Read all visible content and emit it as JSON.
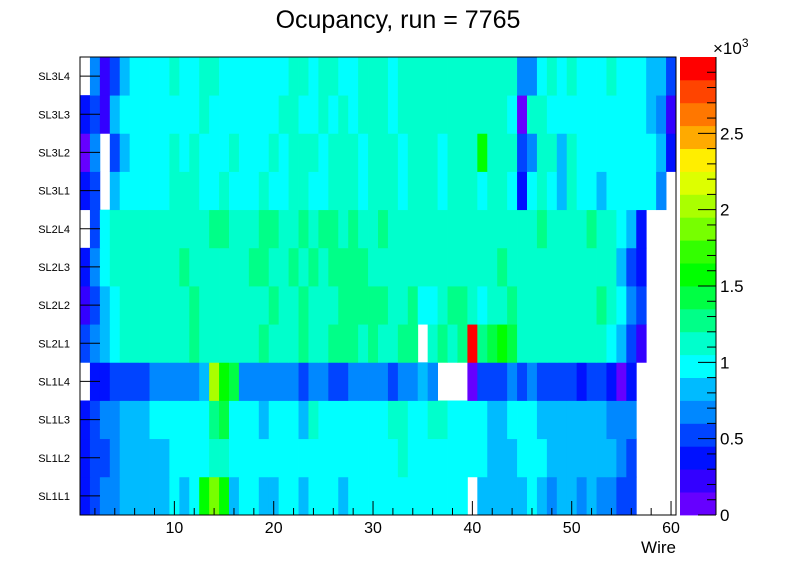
{
  "chart_data": {
    "type": "heatmap",
    "title": "Ocupancy, run = 7765",
    "xlabel": "Wire",
    "ylabel": "",
    "xlim": [
      0.5,
      60.5
    ],
    "x_ticks": [
      "10",
      "20",
      "30",
      "40",
      "50",
      "60"
    ],
    "x_tick_values": [
      10,
      20,
      30,
      40,
      50,
      60
    ],
    "y_categories": [
      "SL1L1",
      "SL1L2",
      "SL1L3",
      "SL1L4",
      "SL2L1",
      "SL2L2",
      "SL2L3",
      "SL2L4",
      "SL3L1",
      "SL3L2",
      "SL3L3",
      "SL3L4"
    ],
    "zlim": [
      0,
      3000
    ],
    "z_multiplier_label": "×10",
    "z_multiplier_exp": "3",
    "z_ticks": [
      "0",
      "0.5",
      "1",
      "1.5",
      "2",
      "2.5"
    ],
    "z_tick_values": [
      0,
      500,
      1000,
      1500,
      2000,
      2500
    ],
    "palette": [
      "#6600ff",
      "#3300ff",
      "#0011ff",
      "#0044ff",
      "#0088ff",
      "#00bbff",
      "#00ffff",
      "#00ffcc",
      "#00ff88",
      "#00ff44",
      "#00ff00",
      "#33ff00",
      "#77ff00",
      "#aaff00",
      "#ddff00",
      "#ffee00",
      "#ffaa00",
      "#ff7700",
      "#ff4400",
      "#ff0000"
    ],
    "z_rows_top_to_bottom": {
      "SL3L4": [
        0,
        675,
        225,
        525,
        825,
        975,
        975,
        975,
        975,
        1125,
        975,
        975,
        1125,
        1125,
        975,
        975,
        975,
        975,
        975,
        975,
        975,
        1125,
        1125,
        975,
        1125,
        1125,
        975,
        975,
        1125,
        1125,
        1125,
        975,
        1125,
        1125,
        1125,
        1125,
        1125,
        1125,
        1125,
        1125,
        1125,
        1125,
        1125,
        1125,
        675,
        675,
        975,
        1125,
        975,
        1125,
        975,
        975,
        975,
        1125,
        975,
        975,
        975,
        825,
        825,
        525
      ],
      "SL3L3": [
        375,
        525,
        225,
        825,
        975,
        975,
        975,
        975,
        975,
        975,
        975,
        975,
        1125,
        975,
        975,
        975,
        975,
        975,
        975,
        975,
        1125,
        1125,
        975,
        975,
        1125,
        975,
        1125,
        975,
        1125,
        1125,
        1125,
        975,
        1125,
        1125,
        1125,
        1125,
        1125,
        1125,
        1125,
        1125,
        1125,
        1125,
        1125,
        975,
        75,
        1125,
        1125,
        975,
        975,
        975,
        975,
        975,
        975,
        975,
        975,
        975,
        975,
        825,
        675,
        225
      ],
      "SL3L2": [
        75,
        675,
        0,
        525,
        825,
        975,
        975,
        975,
        975,
        1125,
        975,
        1125,
        975,
        975,
        975,
        1125,
        975,
        975,
        975,
        1125,
        975,
        1125,
        1125,
        1125,
        975,
        1125,
        1125,
        1125,
        975,
        1125,
        1125,
        1125,
        975,
        1125,
        1125,
        1125,
        975,
        1125,
        1125,
        1125,
        1575,
        1125,
        1125,
        1125,
        525,
        675,
        1125,
        1125,
        825,
        1125,
        975,
        975,
        975,
        975,
        975,
        975,
        975,
        975,
        825,
        375
      ],
      "SL3L1": [
        375,
        525,
        0,
        825,
        975,
        975,
        975,
        975,
        975,
        1125,
        1125,
        1125,
        975,
        975,
        1125,
        975,
        975,
        975,
        1125,
        975,
        975,
        1125,
        1125,
        975,
        975,
        1125,
        1125,
        1125,
        975,
        1125,
        1125,
        1125,
        975,
        1125,
        1125,
        1125,
        975,
        1125,
        1125,
        1125,
        975,
        1125,
        1125,
        975,
        375,
        975,
        1125,
        975,
        825,
        1125,
        975,
        975,
        825,
        975,
        975,
        975,
        975,
        975,
        675,
        0
      ],
      "SL2L4": [
        0,
        525,
        975,
        1125,
        1125,
        1125,
        1125,
        1125,
        1125,
        1125,
        1125,
        1125,
        1125,
        1275,
        1275,
        1125,
        1125,
        1125,
        1275,
        1275,
        1125,
        1125,
        1275,
        1125,
        1275,
        1275,
        1125,
        1275,
        1125,
        1125,
        1275,
        1125,
        1125,
        1125,
        1125,
        1125,
        1125,
        1125,
        1125,
        1125,
        1125,
        1125,
        1125,
        1125,
        1125,
        1125,
        1275,
        1125,
        1125,
        1125,
        1125,
        1275,
        1125,
        1125,
        975,
        825,
        375,
        0,
        0,
        0
      ],
      "SL2L3": [
        375,
        675,
        975,
        1125,
        1125,
        1125,
        1125,
        1125,
        1125,
        1125,
        1275,
        1125,
        1125,
        1125,
        1125,
        1125,
        1125,
        1275,
        1275,
        1125,
        1125,
        1275,
        1125,
        1275,
        1125,
        1275,
        1275,
        1275,
        1275,
        1125,
        1125,
        1125,
        1125,
        1125,
        1125,
        1125,
        1125,
        1125,
        1125,
        1125,
        1125,
        1125,
        1275,
        1125,
        1125,
        1125,
        1125,
        1125,
        1125,
        1125,
        1125,
        1125,
        1125,
        1125,
        825,
        525,
        375,
        0,
        0,
        0
      ],
      "SL2L2": [
        225,
        525,
        825,
        975,
        1125,
        1125,
        1125,
        1125,
        1125,
        1125,
        1125,
        1275,
        1125,
        1125,
        1125,
        1125,
        1125,
        1125,
        1125,
        1275,
        1125,
        1125,
        1275,
        1125,
        1125,
        1125,
        1275,
        1275,
        1275,
        1275,
        1275,
        1125,
        1125,
        1275,
        975,
        975,
        1125,
        1275,
        1275,
        1125,
        975,
        1125,
        1125,
        1275,
        1125,
        1125,
        1125,
        1125,
        1125,
        1125,
        1125,
        1125,
        1275,
        1125,
        975,
        675,
        525,
        0,
        0,
        0
      ],
      "SL2L1": [
        525,
        675,
        825,
        975,
        1125,
        1125,
        1125,
        1125,
        1125,
        1125,
        1125,
        1275,
        1125,
        1125,
        1125,
        1125,
        1125,
        1125,
        1275,
        1125,
        1125,
        1125,
        1275,
        1125,
        1125,
        1275,
        1275,
        1275,
        1125,
        1275,
        1125,
        1125,
        1275,
        1275,
        0,
        1125,
        1275,
        1125,
        1275,
        2925,
        1275,
        1425,
        1575,
        1425,
        1125,
        1125,
        1125,
        1125,
        1125,
        1125,
        1125,
        1125,
        1125,
        975,
        825,
        525,
        225,
        0,
        0,
        0
      ],
      "SL1L4": [
        0,
        375,
        375,
        525,
        525,
        525,
        525,
        675,
        675,
        675,
        675,
        675,
        825,
        2025,
        1575,
        1425,
        675,
        675,
        675,
        675,
        675,
        675,
        525,
        675,
        675,
        525,
        525,
        675,
        675,
        675,
        675,
        525,
        675,
        675,
        825,
        675,
        0,
        0,
        0,
        75,
        525,
        525,
        525,
        675,
        525,
        675,
        525,
        525,
        525,
        525,
        375,
        525,
        525,
        375,
        75,
        375,
        0,
        0,
        0,
        0
      ],
      "SL1L3": [
        375,
        525,
        675,
        675,
        825,
        825,
        825,
        975,
        975,
        975,
        975,
        975,
        975,
        1275,
        1425,
        975,
        975,
        975,
        825,
        975,
        975,
        975,
        825,
        1125,
        975,
        975,
        975,
        975,
        975,
        975,
        975,
        1125,
        1125,
        975,
        975,
        1125,
        1125,
        975,
        975,
        975,
        975,
        825,
        825,
        975,
        975,
        975,
        825,
        825,
        825,
        825,
        825,
        825,
        825,
        675,
        675,
        675,
        0,
        0,
        0,
        0
      ],
      "SL1L2": [
        375,
        525,
        525,
        675,
        825,
        825,
        825,
        825,
        825,
        975,
        975,
        975,
        975,
        1125,
        1125,
        975,
        975,
        975,
        975,
        975,
        975,
        975,
        975,
        975,
        975,
        975,
        975,
        975,
        975,
        975,
        975,
        975,
        1125,
        975,
        975,
        975,
        975,
        975,
        975,
        975,
        975,
        825,
        825,
        825,
        975,
        975,
        975,
        825,
        825,
        825,
        825,
        825,
        825,
        825,
        675,
        525,
        0,
        0,
        0,
        0
      ],
      "SL1L1": [
        375,
        525,
        675,
        675,
        825,
        825,
        825,
        825,
        825,
        975,
        825,
        975,
        1575,
        1875,
        1575,
        825,
        975,
        975,
        825,
        825,
        975,
        975,
        825,
        975,
        975,
        975,
        825,
        975,
        975,
        975,
        975,
        975,
        975,
        975,
        975,
        975,
        975,
        975,
        975,
        0,
        825,
        825,
        825,
        825,
        825,
        975,
        825,
        675,
        825,
        825,
        675,
        825,
        675,
        675,
        525,
        525,
        0,
        0,
        0,
        0
      ]
    }
  }
}
